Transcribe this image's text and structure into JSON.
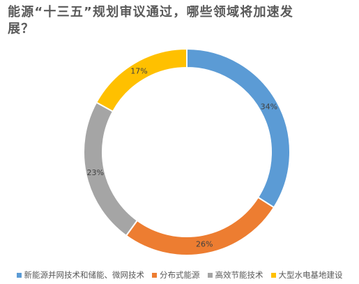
{
  "chart_data": {
    "type": "pie",
    "donut": true,
    "title": "能源“十三五”规划审议通过，哪些领域将加速发展？",
    "categories": [
      "新能源并网技术和储能、微网技术",
      "分布式能源",
      "高效节能技术",
      "大型水电基地建设"
    ],
    "values": [
      34,
      26,
      23,
      17
    ],
    "data_labels": [
      "34%",
      "26%",
      "23%",
      "17%"
    ],
    "colors": [
      "#5B9BD5",
      "#ED7D31",
      "#A5A5A5",
      "#FFC000"
    ],
    "legend_position": "bottom"
  }
}
